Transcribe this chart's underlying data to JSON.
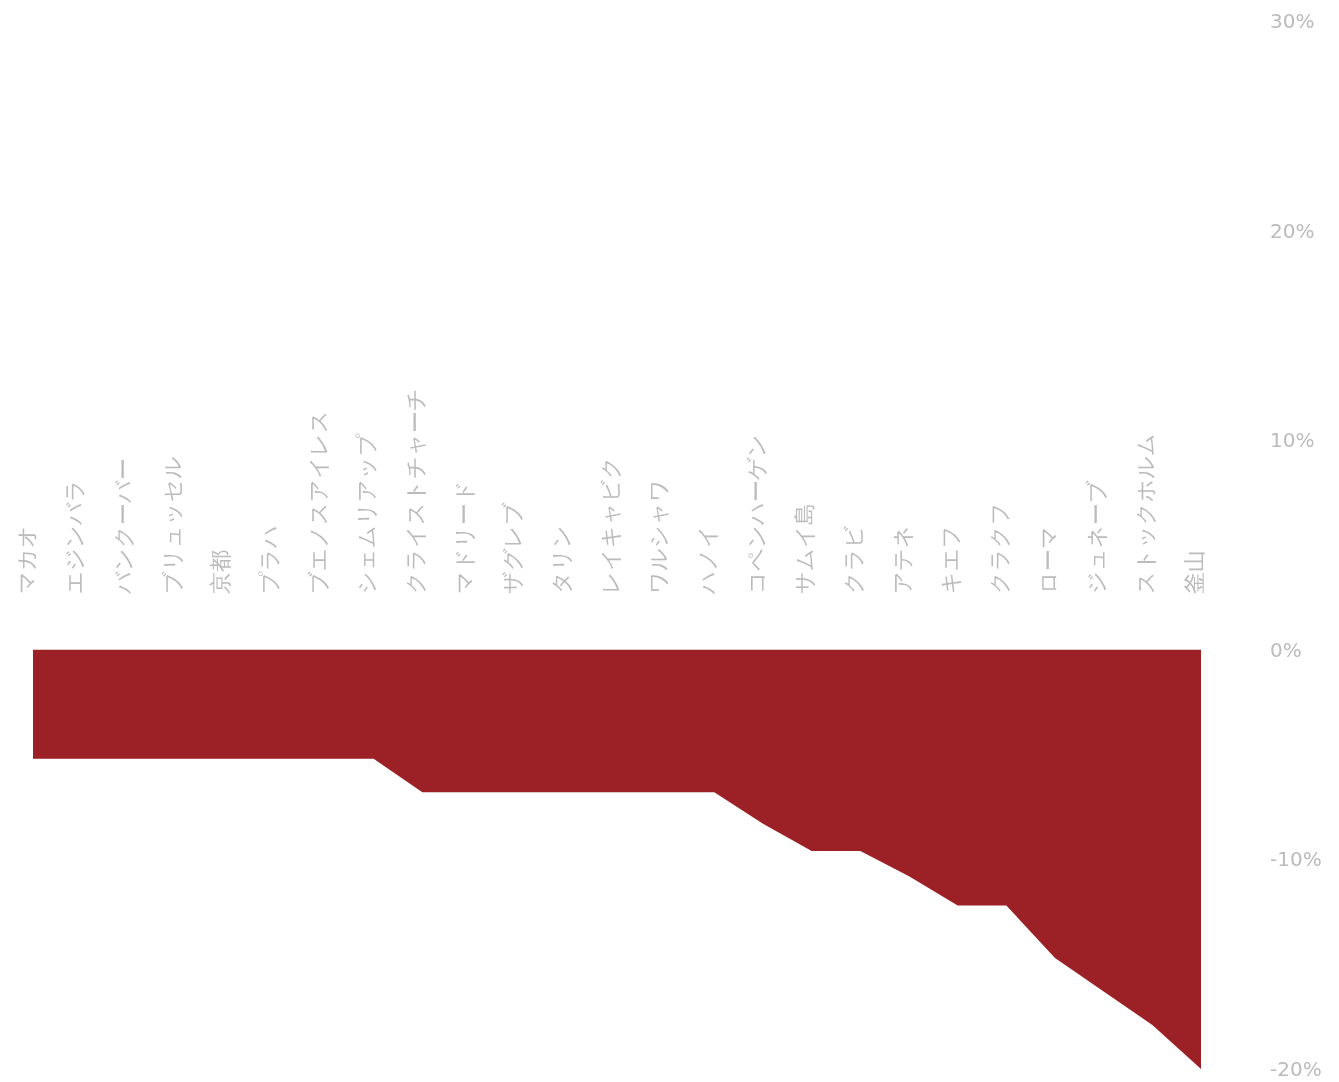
{
  "chart_data": {
    "type": "area",
    "categories": [
      "マカオ",
      "エジンバラ",
      "バンクーバー",
      "ブリュッセル",
      "京都",
      "プラハ",
      "ブエノスアイレス",
      "シェムリアップ",
      "クライストチャーチ",
      "マドリード",
      "ザグレブ",
      "タリン",
      "レイキャビク",
      "ワルシャワ",
      "ハノイ",
      "コペンハーゲン",
      "サムイ島",
      "クラビ",
      "アテネ",
      "キエフ",
      "クラクフ",
      "ローマ",
      "ジュネーブ",
      "ストックホルム",
      "釜山"
    ],
    "values": [
      -5.2,
      -5.2,
      -5.2,
      -5.2,
      -5.2,
      -5.2,
      -5.2,
      -5.2,
      -6.8,
      -6.8,
      -6.8,
      -6.8,
      -6.8,
      -6.8,
      -6.8,
      -8.3,
      -9.6,
      -9.6,
      -10.8,
      -12.2,
      -12.2,
      -14.7,
      -16.3,
      -17.9,
      -20
    ],
    "color": "#9c2126",
    "ylim": [
      -20,
      30
    ],
    "yticks": [
      {
        "value": 30,
        "label": "30%"
      },
      {
        "value": 20,
        "label": "20%"
      },
      {
        "value": 10,
        "label": "10%"
      },
      {
        "value": 0,
        "label": "0%"
      },
      {
        "value": -10,
        "label": "-10%"
      },
      {
        "value": -20,
        "label": "-20%"
      }
    ],
    "grid": false
  }
}
